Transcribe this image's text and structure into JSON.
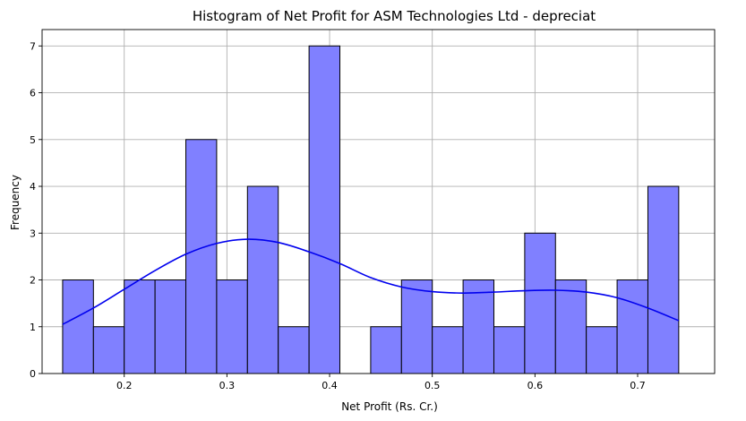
{
  "chart_data": {
    "type": "bar",
    "title": "Histogram of Net Profit for ASM Technologies Ltd - depreciat",
    "xlabel": "Net Profit (Rs. Cr.)",
    "ylabel": "Frequency",
    "xlim": [
      0.12,
      0.775
    ],
    "ylim": [
      0,
      7.35
    ],
    "grid": true,
    "x_ticks": [
      0.2,
      0.3,
      0.4,
      0.5,
      0.6,
      0.7
    ],
    "y_ticks": [
      0,
      1,
      2,
      3,
      4,
      5,
      6,
      7
    ],
    "bins": [
      {
        "x0": 0.14,
        "x1": 0.17,
        "count": 2
      },
      {
        "x0": 0.17,
        "x1": 0.2,
        "count": 1
      },
      {
        "x0": 0.2,
        "x1": 0.23,
        "count": 2
      },
      {
        "x0": 0.23,
        "x1": 0.26,
        "count": 2
      },
      {
        "x0": 0.26,
        "x1": 0.29,
        "count": 5
      },
      {
        "x0": 0.29,
        "x1": 0.32,
        "count": 2
      },
      {
        "x0": 0.32,
        "x1": 0.35,
        "count": 4
      },
      {
        "x0": 0.35,
        "x1": 0.38,
        "count": 1
      },
      {
        "x0": 0.38,
        "x1": 0.41,
        "count": 7
      },
      {
        "x0": 0.41,
        "x1": 0.44,
        "count": 0
      },
      {
        "x0": 0.44,
        "x1": 0.47,
        "count": 1
      },
      {
        "x0": 0.47,
        "x1": 0.5,
        "count": 2
      },
      {
        "x0": 0.5,
        "x1": 0.53,
        "count": 1
      },
      {
        "x0": 0.53,
        "x1": 0.56,
        "count": 2
      },
      {
        "x0": 0.56,
        "x1": 0.59,
        "count": 1
      },
      {
        "x0": 0.59,
        "x1": 0.62,
        "count": 3
      },
      {
        "x0": 0.62,
        "x1": 0.65,
        "count": 2
      },
      {
        "x0": 0.65,
        "x1": 0.68,
        "count": 1
      },
      {
        "x0": 0.68,
        "x1": 0.71,
        "count": 2
      },
      {
        "x0": 0.71,
        "x1": 0.74,
        "count": 4
      }
    ],
    "kde": {
      "x": [
        0.14,
        0.17,
        0.2,
        0.23,
        0.26,
        0.29,
        0.32,
        0.35,
        0.38,
        0.41,
        0.44,
        0.47,
        0.5,
        0.53,
        0.56,
        0.59,
        0.62,
        0.65,
        0.68,
        0.71,
        0.74
      ],
      "y": [
        1.05,
        1.4,
        1.8,
        2.2,
        2.55,
        2.78,
        2.87,
        2.8,
        2.6,
        2.35,
        2.05,
        1.85,
        1.75,
        1.72,
        1.74,
        1.77,
        1.78,
        1.74,
        1.62,
        1.4,
        1.13
      ]
    },
    "colors": {
      "bar_fill": "#8080ff",
      "bar_edge": "#000000",
      "kde": "#0000ee",
      "grid": "#b0b0b0"
    }
  }
}
